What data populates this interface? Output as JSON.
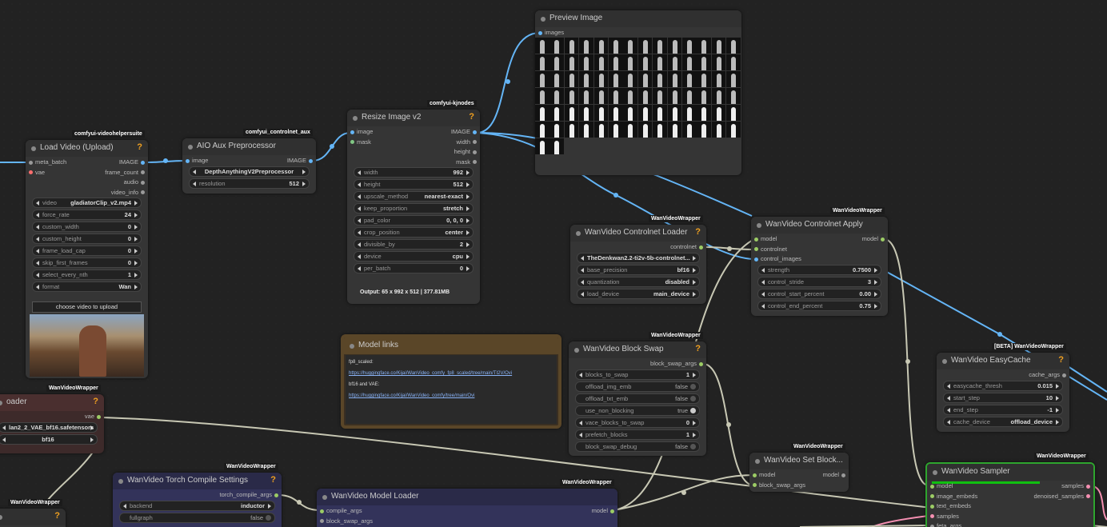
{
  "nodes": [
    {
      "badge": "comfyui-videohelpersuite",
      "title": "Load Video (Upload)",
      "help": "?",
      "inputs": [
        {
          "name": "meta_batch",
          "color": "#9a9a9a"
        },
        {
          "name": "vae",
          "color": "#ff6e6e"
        }
      ],
      "outputs": [
        {
          "name": "IMAGE",
          "color": "#64b5f6"
        },
        {
          "name": "frame_count",
          "color": "#9a9a9a"
        },
        {
          "name": "audio",
          "color": "#9a9a9a"
        },
        {
          "name": "video_info",
          "color": "#9a9a9a"
        }
      ],
      "widgets": [
        {
          "name": "video",
          "value": "gladiatorClip_v2.mp4"
        },
        {
          "name": "force_rate",
          "value": "24"
        },
        {
          "name": "custom_width",
          "value": "0"
        },
        {
          "name": "custom_height",
          "value": "0"
        },
        {
          "name": "frame_load_cap",
          "value": "0"
        },
        {
          "name": "skip_first_frames",
          "value": "0"
        },
        {
          "name": "select_every_nth",
          "value": "1"
        },
        {
          "name": "format",
          "value": "Wan"
        }
      ],
      "button": "choose video to upload"
    },
    {
      "badge": "comfyui_controlnet_aux",
      "title": "AIO Aux Preprocessor",
      "inputs": [
        {
          "name": "image",
          "color": "#64b5f6"
        }
      ],
      "outputs": [
        {
          "name": "IMAGE",
          "color": "#64b5f6"
        }
      ],
      "widgets": [
        {
          "value": "DepthAnythingV2Preprocessor"
        },
        {
          "name": "resolution",
          "value": "512"
        }
      ]
    },
    {
      "badge": "comfyui-kjnodes",
      "title": "Resize Image v2",
      "help": "?",
      "inputs": [
        {
          "name": "image",
          "color": "#64b5f6"
        },
        {
          "name": "mask",
          "color": "#81c784"
        }
      ],
      "outputs": [
        {
          "name": "IMAGE",
          "color": "#64b5f6"
        },
        {
          "name": "width",
          "color": "#9a9a9a"
        },
        {
          "name": "height",
          "color": "#9a9a9a"
        },
        {
          "name": "mask",
          "color": "#9a9a9a"
        }
      ],
      "widgets": [
        {
          "name": "width",
          "value": "992"
        },
        {
          "name": "height",
          "value": "512"
        },
        {
          "name": "upscale_method",
          "value": "nearest-exact"
        },
        {
          "name": "keep_proportion",
          "value": "stretch"
        },
        {
          "name": "pad_color",
          "value": "0, 0, 0"
        },
        {
          "name": "crop_position",
          "value": "center"
        },
        {
          "name": "divisible_by",
          "value": "2"
        },
        {
          "name": "device",
          "value": "cpu"
        },
        {
          "name": "per_batch",
          "value": "0"
        }
      ],
      "output_text": "Output: 65 x 992 x 512 | 377.81MB"
    },
    {
      "title": "Preview Image",
      "inputs": [
        {
          "name": "images",
          "color": "#64b5f6"
        }
      ]
    },
    {
      "badge": "WanVideoWrapper",
      "title": "WanVideo Controlnet Loader",
      "help": "?",
      "outputs": [
        {
          "name": "controlnet",
          "color": "#9ccc65"
        }
      ],
      "widgets": [
        {
          "value": "TheDenkwan2.2-ti2v-5b-controlnet..."
        },
        {
          "name": "base_precision",
          "value": "bf16"
        },
        {
          "name": "quantization",
          "value": "disabled"
        },
        {
          "name": "load_device",
          "value": "main_device"
        }
      ]
    },
    {
      "badge": "WanVideoWrapper",
      "title": "WanVideo Controlnet Apply",
      "inputs": [
        {
          "name": "model",
          "color": "#9ccc65"
        },
        {
          "name": "controlnet",
          "color": "#9ccc65"
        },
        {
          "name": "control_images",
          "color": "#64b5f6"
        }
      ],
      "outputs": [
        {
          "name": "model",
          "color": "#9ccc65"
        }
      ],
      "widgets": [
        {
          "name": "strength",
          "value": "0.7500"
        },
        {
          "name": "control_stride",
          "value": "3"
        },
        {
          "name": "control_start_percent",
          "value": "0.00"
        },
        {
          "name": "control_end_percent",
          "value": "0.75"
        }
      ]
    },
    {
      "title": "Model links",
      "lines": [
        {
          "text": "fp8_scaled:"
        },
        {
          "text": "https://huggingface.co/Kijai/WanVideo_comfy_fp8_scaled/tree/main/TI2V/Ovi",
          "link": true
        },
        {
          "text": "bf16 and VAE:"
        },
        {
          "text": "https://huggingface.co/Kijai/WanVideo_comfy/tree/main/Ovi",
          "link": true
        }
      ]
    },
    {
      "badge": "WanVideoWrapper",
      "title": "WanVideo Block Swap",
      "help": "?",
      "outputs": [
        {
          "name": "block_swap_args",
          "color": "#9ccc65"
        }
      ],
      "widgets": [
        {
          "name": "blocks_to_swap",
          "value": "1"
        },
        {
          "name": "offload_img_emb",
          "value": "false"
        },
        {
          "name": "offload_txt_emb",
          "value": "false"
        },
        {
          "name": "use_non_blocking",
          "value": "true"
        },
        {
          "name": "vace_blocks_to_swap",
          "value": "0"
        },
        {
          "name": "prefetch_blocks",
          "value": "1"
        },
        {
          "name": "block_swap_debug",
          "value": "false"
        }
      ]
    },
    {
      "badge": "WanVideoWrapper",
      "title": "WanVideo Set Block...",
      "inputs": [
        {
          "name": "model",
          "color": "#9ccc65"
        },
        {
          "name": "block_swap_args",
          "color": "#9ccc65"
        }
      ],
      "outputs": [
        {
          "name": "model",
          "color": "#9a9a9a"
        }
      ]
    },
    {
      "badge": "[BETA] WanVideoWrapper",
      "title": "WanVideo EasyCache",
      "help": "?",
      "outputs": [
        {
          "name": "cache_args",
          "color": "#9a9a9a"
        }
      ],
      "widgets": [
        {
          "name": "easycache_thresh",
          "value": "0.015"
        },
        {
          "name": "start_step",
          "value": "10"
        },
        {
          "name": "end_step",
          "value": "-1"
        },
        {
          "name": "cache_device",
          "value": "offload_device"
        }
      ]
    },
    {
      "badge": "WanVideoWrapper",
      "title": "WanVideo Sampler",
      "inputs": [
        {
          "name": "model",
          "color": "#9ccc65"
        },
        {
          "name": "image_embeds",
          "color": "#9ccc65"
        },
        {
          "name": "text_embeds",
          "color": "#9ccc65"
        },
        {
          "name": "samples",
          "color": "#f48fb1"
        },
        {
          "name": "feta_args",
          "color": "#9a9a9a"
        }
      ],
      "outputs": [
        {
          "name": "samples",
          "color": "#f48fb1"
        },
        {
          "name": "denoised_samples",
          "color": "#f48fb1"
        }
      ]
    },
    {
      "badge": "WanVideoWrapper",
      "title": "oader",
      "help": "?",
      "outputs": [
        {
          "name": "vae",
          "color": "#9ccc65"
        }
      ],
      "widgets": [
        {
          "value": "lan2_2_VAE_bf16.safetensors"
        },
        {
          "value": "bf16"
        }
      ]
    },
    {
      "badge": "WanVideoWrapper",
      "title": "WanVideo Torch Compile Settings",
      "help": "?",
      "outputs": [
        {
          "name": "torch_compile_args",
          "color": "#9ccc65"
        }
      ],
      "widgets": [
        {
          "name": "backend",
          "value": "inductor"
        },
        {
          "name": "fullgraph",
          "value": "false"
        }
      ]
    },
    {
      "badge": "WanVideoWrapper",
      "title": "WanVideo Model Loader",
      "inputs": [
        {
          "name": "compile_args",
          "color": "#9ccc65"
        },
        {
          "name": "block_swap_args",
          "color": "#9a9a9a"
        }
      ],
      "outputs": [
        {
          "name": "model",
          "color": "#9ccc65"
        }
      ]
    },
    {
      "badge": "WanVideoWrapper",
      "help": "?"
    }
  ]
}
